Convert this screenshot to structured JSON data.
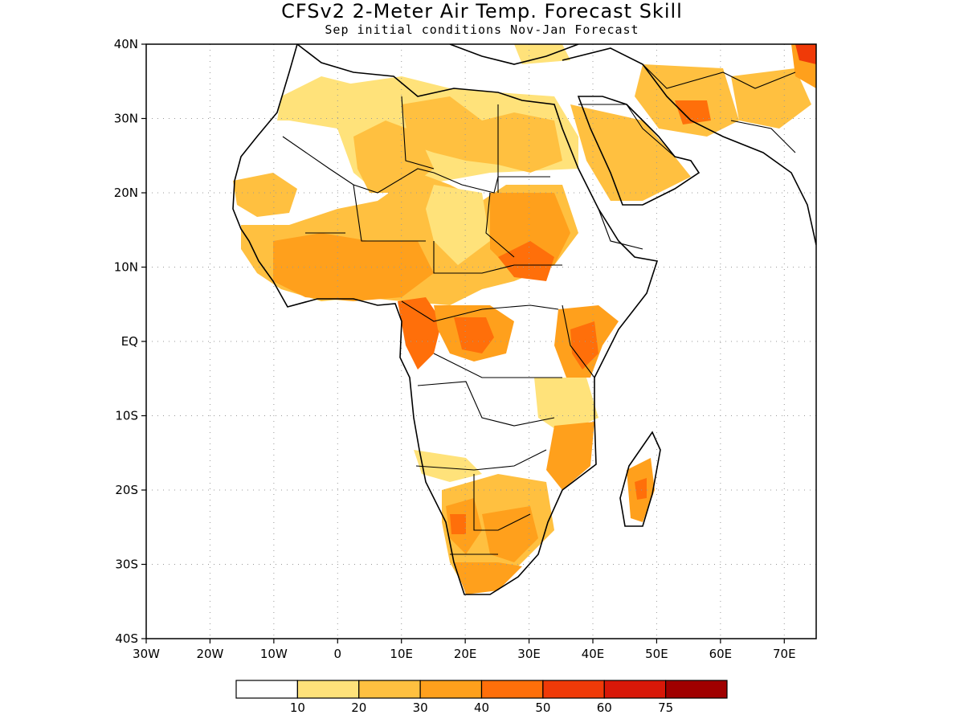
{
  "header": {
    "title": "CFSv2 2-Meter Air Temp. Forecast Skill",
    "subtitle": "Sep initial conditions  Nov-Jan Forecast"
  },
  "map": {
    "lon_range": [
      -30,
      75
    ],
    "lat_range": [
      -40,
      40
    ],
    "grid": "dotted",
    "lon_ticks": [
      {
        "value": -30,
        "label": "30W"
      },
      {
        "value": -20,
        "label": "20W"
      },
      {
        "value": -10,
        "label": "10W"
      },
      {
        "value": 0,
        "label": "0"
      },
      {
        "value": 10,
        "label": "10E"
      },
      {
        "value": 20,
        "label": "20E"
      },
      {
        "value": 30,
        "label": "30E"
      },
      {
        "value": 40,
        "label": "40E"
      },
      {
        "value": 50,
        "label": "50E"
      },
      {
        "value": 60,
        "label": "60E"
      },
      {
        "value": 70,
        "label": "70E"
      }
    ],
    "lat_ticks": [
      {
        "value": 40,
        "label": "40N"
      },
      {
        "value": 30,
        "label": "30N"
      },
      {
        "value": 20,
        "label": "20N"
      },
      {
        "value": 10,
        "label": "10N"
      },
      {
        "value": 0,
        "label": "EQ"
      },
      {
        "value": -10,
        "label": "10S"
      },
      {
        "value": -20,
        "label": "20S"
      },
      {
        "value": -30,
        "label": "30S"
      },
      {
        "value": -40,
        "label": "40S"
      }
    ]
  },
  "legend": {
    "colors": [
      "#ffffff",
      "#ffe27a",
      "#ffc040",
      "#ffa01c",
      "#ff6f0a",
      "#f03a08",
      "#d81808",
      "#a00000"
    ],
    "labels": [
      "10",
      "20",
      "30",
      "40",
      "50",
      "60",
      "75"
    ]
  }
}
